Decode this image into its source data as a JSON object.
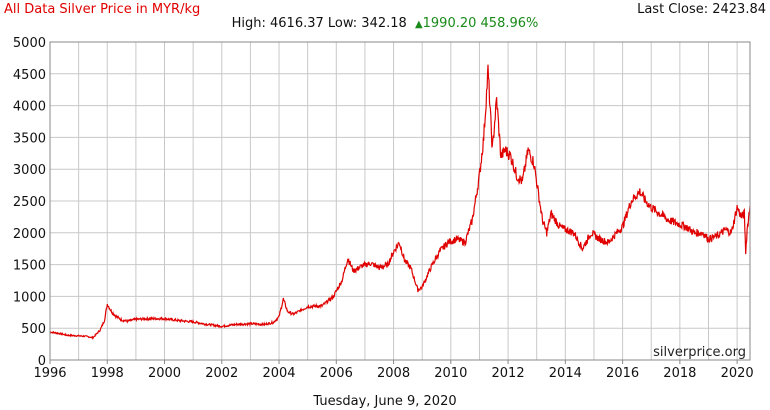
{
  "header": {
    "title": "All Data Silver Price in MYR/kg",
    "last_close": "Last Close: 2423.84",
    "high": "High: 4616.37",
    "low": "Low: 342.18",
    "change_arrow": "▲",
    "change": "1990.20 458.96%"
  },
  "footer": {
    "date": "Tuesday, June 9, 2020"
  },
  "watermark": "silverprice.org",
  "colors": {
    "line": "#e00000",
    "grid": "#c8c8c8",
    "change_up": "#1a8a1a"
  },
  "chart_data": {
    "type": "line",
    "title": "All Data Silver Price in MYR/kg",
    "xlabel": "",
    "ylabel": "",
    "xlim": [
      1996,
      2020.45
    ],
    "ylim": [
      0,
      5000
    ],
    "x_ticks": [
      "1996",
      "1998",
      "2000",
      "2002",
      "2004",
      "2006",
      "2008",
      "2010",
      "2012",
      "2014",
      "2016",
      "2018",
      "2020"
    ],
    "y_ticks": [
      "0",
      "500",
      "1000",
      "1500",
      "2000",
      "2500",
      "3000",
      "3500",
      "4000",
      "4500",
      "5000"
    ],
    "grid": true,
    "legend": "none",
    "series": [
      {
        "x": [
          1996.0,
          1996.3,
          1996.6,
          1997.0,
          1997.3,
          1997.5,
          1997.75,
          1997.9,
          1998.0,
          1998.15,
          1998.3,
          1998.5,
          1998.7,
          1999.0,
          1999.5,
          2000.0,
          2000.5,
          2001.0,
          2001.5,
          2002.0,
          2002.5,
          2003.0,
          2003.5,
          2003.8,
          2004.0,
          2004.15,
          2004.3,
          2004.5,
          2004.8,
          2005.0,
          2005.5,
          2005.9,
          2006.2,
          2006.4,
          2006.6,
          2006.9,
          2007.2,
          2007.5,
          2007.8,
          2008.0,
          2008.2,
          2008.4,
          2008.6,
          2008.85,
          2009.0,
          2009.3,
          2009.6,
          2009.9,
          2010.2,
          2010.5,
          2010.75,
          2011.0,
          2011.15,
          2011.3,
          2011.45,
          2011.6,
          2011.75,
          2011.9,
          2012.1,
          2012.3,
          2012.5,
          2012.7,
          2012.9,
          2013.0,
          2013.2,
          2013.35,
          2013.5,
          2013.8,
          2014.0,
          2014.3,
          2014.6,
          2014.9,
          2015.2,
          2015.5,
          2015.8,
          2016.0,
          2016.3,
          2016.6,
          2016.8,
          2017.0,
          2017.3,
          2017.6,
          2017.9,
          2018.2,
          2018.5,
          2018.8,
          2019.0,
          2019.3,
          2019.6,
          2019.8,
          2020.0,
          2020.15,
          2020.25,
          2020.3,
          2020.35,
          2020.45
        ],
        "y": [
          440,
          420,
          390,
          380,
          370,
          350,
          470,
          620,
          880,
          760,
          690,
          630,
          610,
          640,
          650,
          650,
          620,
          600,
          560,
          530,
          560,
          570,
          560,
          590,
          680,
          960,
          760,
          720,
          790,
          840,
          850,
          1000,
          1250,
          1600,
          1400,
          1480,
          1520,
          1450,
          1500,
          1700,
          1850,
          1550,
          1450,
          1100,
          1150,
          1450,
          1700,
          1850,
          1900,
          1850,
          2200,
          2900,
          3500,
          4560,
          3300,
          4100,
          3200,
          3300,
          3200,
          2900,
          2800,
          3300,
          3100,
          2800,
          2200,
          2000,
          2300,
          2100,
          2050,
          2000,
          1750,
          2000,
          1900,
          1850,
          2000,
          2100,
          2500,
          2650,
          2500,
          2400,
          2300,
          2200,
          2150,
          2100,
          2000,
          2000,
          1900,
          1950,
          2050,
          2000,
          2400,
          2250,
          2300,
          1700,
          2050,
          2420
        ]
      }
    ]
  }
}
